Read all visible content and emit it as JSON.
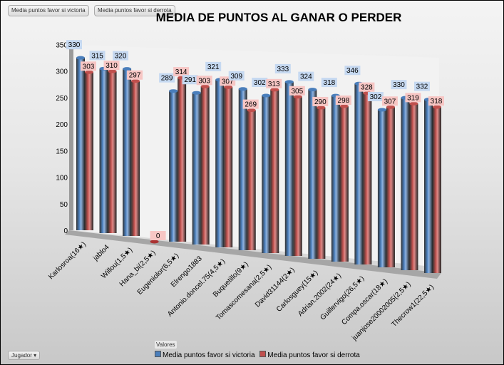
{
  "filter_buttons": [
    "Media puntos favor si victoria",
    "Media puntos favor si derrota"
  ],
  "field_button": "Jugador",
  "values_label": "Valores",
  "chart_data": {
    "type": "bar",
    "title": "MEDIA DE PUNTOS AL GANAR O PERDER",
    "categories": [
      "Karlosroa(16★)",
      "jablo4",
      "Willou(1,5★)",
      "Hana_bi(2,5★)",
      "Eugeniolor(6,5★)",
      "Elrengo1883",
      "Antonio.doncel.75(4,5★)",
      "Buquetillo(9★)",
      "Tomascomesana(2,5★)",
      "David31144(2★)",
      "Carlosguey(15★)",
      "Adrian.2002(24★)",
      "Guillervigo(26,5★)",
      "Compa.oscar(18★)",
      "juanjose20002005(2,5★)",
      "Thecrow1(22,5★)"
    ],
    "series": [
      {
        "name": "Media puntos favor si victoria",
        "color": "#4a7ebb",
        "values": [
          330,
          315,
          320,
          0,
          289,
          291,
          321,
          309,
          302,
          333,
          324,
          318,
          346,
          302,
          330,
          332
        ]
      },
      {
        "name": "Media puntos favor si derrota",
        "color": "#c0504d",
        "values": [
          303,
          310,
          297,
          0,
          314,
          303,
          307,
          269,
          313,
          305,
          290,
          298,
          328,
          307,
          319,
          318
        ]
      }
    ],
    "yticks": [
      0,
      50,
      100,
      150,
      200,
      250,
      300,
      350
    ],
    "ylim": [
      0,
      350
    ],
    "legend": "bottom"
  }
}
